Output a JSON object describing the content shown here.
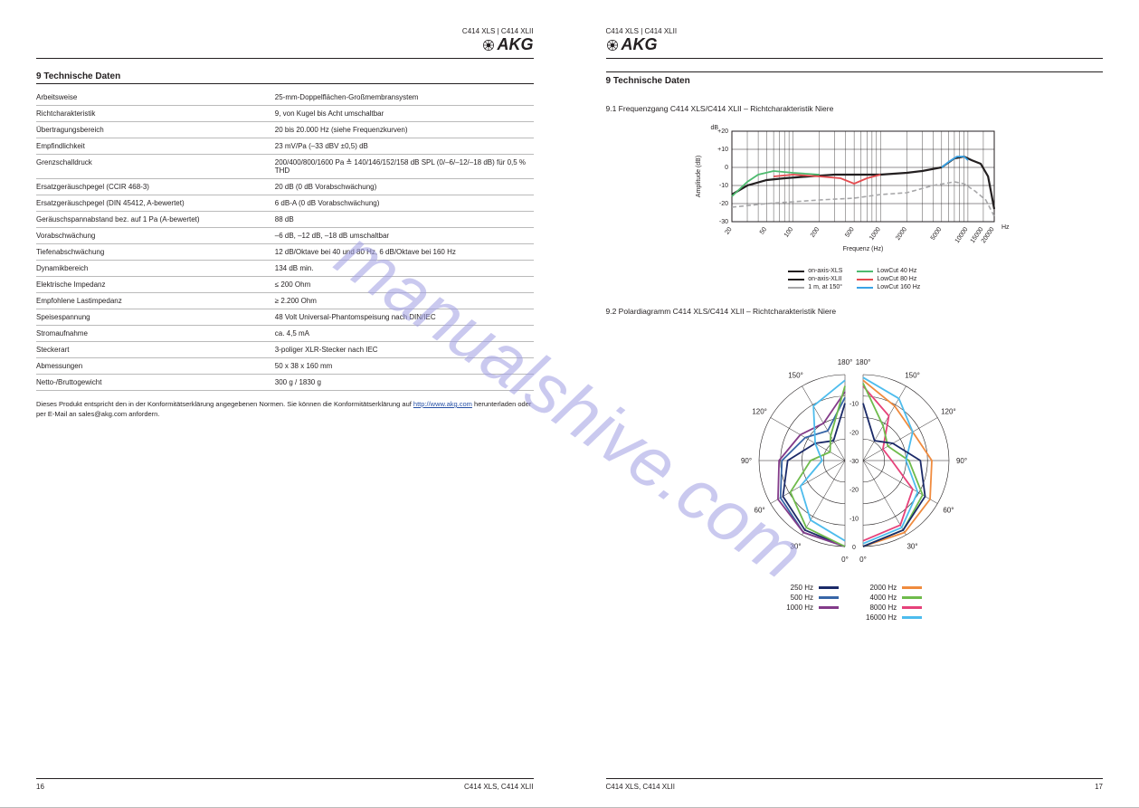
{
  "brand": "AKG",
  "docname": "C414 XLS | C414 XLII",
  "watermark": "manualshive.com",
  "left": {
    "section_title": "9 Technische Daten",
    "specs": [
      {
        "label": "Arbeitsweise",
        "value": "25-mm-Doppelflächen-Großmembransystem"
      },
      {
        "label": "Richtcharakteristik",
        "value": "9, von Kugel bis Acht umschaltbar"
      },
      {
        "label": "Übertragungsbereich",
        "value": "20 bis 20.000 Hz (siehe Frequenzkurven)"
      },
      {
        "label": "Empfindlichkeit",
        "value": "23 mV/Pa (–33 dBV ±0,5) dB"
      },
      {
        "label": "Grenzschalldruck",
        "value": "200/400/800/1600 Pa ≙ 140/146/152/158 dB SPL (0/–6/–12/–18 dB) für 0,5 % THD"
      },
      {
        "label": "Ersatzgeräuschpegel (CCIR 468-3)",
        "value": "20 dB (0 dB Vorabschwächung)"
      },
      {
        "label": "Ersatzgeräuschpegel (DIN 45412, A-bewertet)",
        "value": "6 dB-A (0 dB Vorabschwächung)"
      },
      {
        "label": "Geräuschspannabstand bez. auf 1 Pa (A-bewertet)",
        "value": "88 dB"
      },
      {
        "label": "Vorabschwächung",
        "value": "–6 dB, –12 dB, –18 dB umschaltbar"
      },
      {
        "label": "Tiefenabschwächung",
        "value": "12 dB/Oktave bei 40 und 80 Hz, 6 dB/Oktave bei 160 Hz"
      },
      {
        "label": "Dynamikbereich",
        "value": "134 dB min."
      },
      {
        "label": "Elektrische Impedanz",
        "value": "≤ 200 Ohm"
      },
      {
        "label": "Empfohlene Lastimpedanz",
        "value": "≥ 2.200 Ohm"
      },
      {
        "label": "Speisespannung",
        "value": "48 Volt Universal-Phantomspeisung nach DIN/IEC"
      },
      {
        "label": "Stromaufnahme",
        "value": "ca. 4,5 mA"
      },
      {
        "label": "Steckerart",
        "value": "3-poliger XLR-Stecker nach IEC"
      },
      {
        "label": "Abmessungen",
        "value": "50 x 38 x 160 mm"
      },
      {
        "label": "Netto-/Bruttogewicht",
        "value": "300 g / 1830 g"
      }
    ],
    "note_pre": "Dieses Produkt entspricht den in der Konformitätserklärung angegebenen Normen. Sie können die Konformitätserklärung auf ",
    "note_link": "http://www.akg.com",
    "note_post": " herunterladen oder per E-Mail an sales@akg.com anfordern.",
    "page_num": "16",
    "footer_right": "C414 XLS, C414 XLII"
  },
  "right": {
    "section_title": "9 Technische Daten",
    "freq_subtitle": "9.1 Frequenzgang C414 XLS/C414 XLII – Richtcharakteristik Niere",
    "freq_chart": {
      "y_label": "Amplitude (dB)",
      "y_unit": "dB",
      "x_label": "Frequenz (Hz)",
      "x_unit": "Hz",
      "y_ticks": [
        "+20",
        "+10",
        "0",
        "-10",
        "-20",
        "-30"
      ],
      "y_values": [
        20,
        10,
        0,
        -10,
        -20,
        -30
      ],
      "x_ticks": [
        "20",
        "50",
        "100",
        "200",
        "500",
        "1000",
        "2000",
        "5000",
        "10000",
        "15000",
        "20000"
      ],
      "x_log_positions": [
        20,
        50,
        100,
        200,
        500,
        1000,
        2000,
        5000,
        10000,
        15000,
        20000
      ],
      "grid_color": "#231f20",
      "on_axis": {
        "label": "on-axis-XLS",
        "label2": "on-axis-XLII",
        "color": "#231f20",
        "points": [
          [
            20,
            -15
          ],
          [
            30,
            -10
          ],
          [
            50,
            -7
          ],
          [
            80,
            -6
          ],
          [
            150,
            -5
          ],
          [
            300,
            -4
          ],
          [
            600,
            -4
          ],
          [
            1000,
            -4
          ],
          [
            2000,
            -3
          ],
          [
            3000,
            -2
          ],
          [
            5000,
            0
          ],
          [
            7000,
            5
          ],
          [
            9000,
            6
          ],
          [
            11000,
            4
          ],
          [
            14000,
            2
          ],
          [
            17000,
            -5
          ],
          [
            20000,
            -23
          ]
        ]
      },
      "off_axis": {
        "label": "1 m, at 150°",
        "color": "#a7a7a9",
        "dash": "5,3",
        "points": [
          [
            20,
            -22
          ],
          [
            50,
            -20
          ],
          [
            100,
            -19
          ],
          [
            200,
            -18
          ],
          [
            500,
            -17
          ],
          [
            1000,
            -15
          ],
          [
            2000,
            -14
          ],
          [
            4000,
            -10
          ],
          [
            7000,
            -8
          ],
          [
            9000,
            -9
          ],
          [
            12000,
            -13
          ],
          [
            16000,
            -18
          ],
          [
            20000,
            -27
          ]
        ]
      },
      "lc40": {
        "label": "LowCut 40 Hz",
        "color": "#4eba6f",
        "points": [
          [
            20,
            -16
          ],
          [
            30,
            -8
          ],
          [
            40,
            -4
          ],
          [
            60,
            -2
          ],
          [
            100,
            -3
          ],
          [
            200,
            -4
          ]
        ]
      },
      "lc80": {
        "label": "LowCut 80 Hz",
        "color": "#e44b4f",
        "points": [
          [
            60,
            -5
          ],
          [
            100,
            -4
          ],
          [
            200,
            -5
          ],
          [
            350,
            -6
          ],
          [
            500,
            -9
          ],
          [
            700,
            -6
          ],
          [
            1000,
            -4
          ]
        ]
      },
      "lc160": {
        "label": "LowCut 160 Hz",
        "color": "#3aa2e5",
        "points": [
          [
            5000,
            0
          ],
          [
            6000,
            3
          ],
          [
            7500,
            6
          ],
          [
            9000,
            6
          ],
          [
            10000,
            4
          ]
        ]
      }
    },
    "polar_subtitle": "9.2 Polardiagramm C414 XLS/C414 XLII – Richtcharakteristik Niere",
    "polar_chart": {
      "rings": [
        0,
        -10,
        -20,
        -30
      ],
      "ring_labels": [
        "0",
        "-10",
        "-20",
        "-30",
        "-20",
        "-10"
      ],
      "angle_labels": [
        "0°",
        "30°",
        "60°",
        "90°",
        "120°",
        "150°",
        "180°"
      ],
      "freqs": [
        {
          "hz": "250 Hz",
          "color": "#1b2a68"
        },
        {
          "hz": "500 Hz",
          "color": "#3866a7"
        },
        {
          "hz": "1000 Hz",
          "color": "#833b89"
        },
        {
          "hz": "2000 Hz",
          "color": "#f08b3e"
        },
        {
          "hz": "4000 Hz",
          "color": "#6fbb4c"
        },
        {
          "hz": "8000 Hz",
          "color": "#e6427a"
        },
        {
          "hz": "16000 Hz",
          "color": "#4dbced"
        }
      ]
    },
    "page_num": "17",
    "footer_left": "C414 XLS, C414 XLII"
  }
}
